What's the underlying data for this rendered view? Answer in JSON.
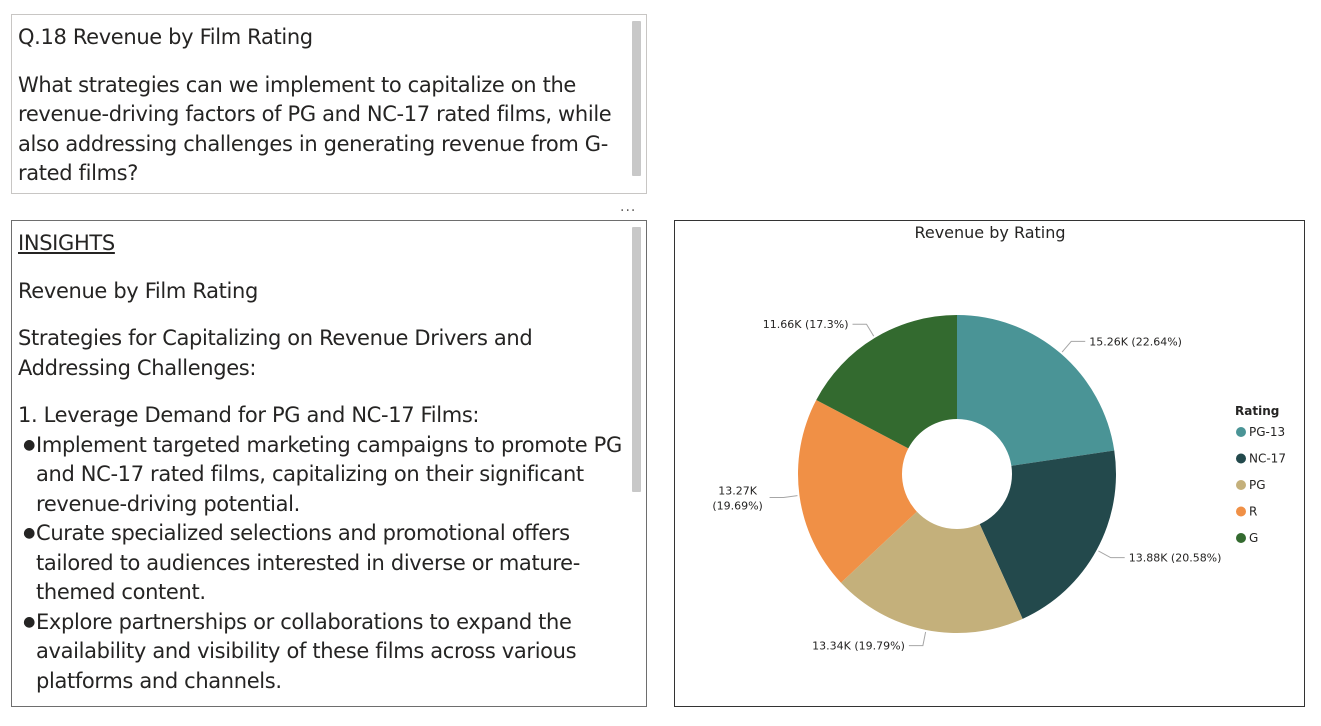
{
  "question": {
    "title": "Q.18 Revenue by Film Rating",
    "body": "What strategies can we implement to capitalize on the revenue-driving factors of PG and NC-17 rated films, while also addressing challenges in generating revenue from G-rated films?"
  },
  "more_options_label": "...",
  "insights": {
    "heading": "INSIGHTS",
    "subtitle": "Revenue by Film Rating",
    "intro": "Strategies for Capitalizing on Revenue Drivers and Addressing Challenges:",
    "section_1_title": "1. Leverage Demand for PG and NC-17 Films:",
    "bullets": [
      "Implement targeted marketing campaigns to promote PG and NC-17 rated films, capitalizing on their significant revenue-driving potential.",
      "Curate specialized selections and promotional offers tailored to audiences interested in diverse or mature-themed content.",
      "Explore partnerships or collaborations to expand the availability and visibility of these films across various platforms and channels."
    ]
  },
  "colors": {
    "PG-13": "#4a9496",
    "NC-17": "#23494c",
    "PG": "#c4b07b",
    "R": "#f09046",
    "G": "#336a2f",
    "leader_line": "#a6a6a6"
  },
  "chart_data": {
    "type": "pie",
    "variant": "donut",
    "title": "Revenue by Rating",
    "legend_title": "Rating",
    "legend_position": "right",
    "categories": [
      "PG-13",
      "NC-17",
      "PG",
      "R",
      "G"
    ],
    "values": [
      15.26,
      13.88,
      13.34,
      13.27,
      11.66
    ],
    "unit": "K",
    "percentages": [
      22.64,
      20.58,
      19.79,
      19.69,
      17.3
    ],
    "labels": [
      "15.26K (22.64%)",
      "13.88K (20.58%)",
      "13.34K (19.79%)",
      [
        "13.27K",
        "(19.69%)"
      ],
      "11.66K (17.3%)"
    ]
  }
}
